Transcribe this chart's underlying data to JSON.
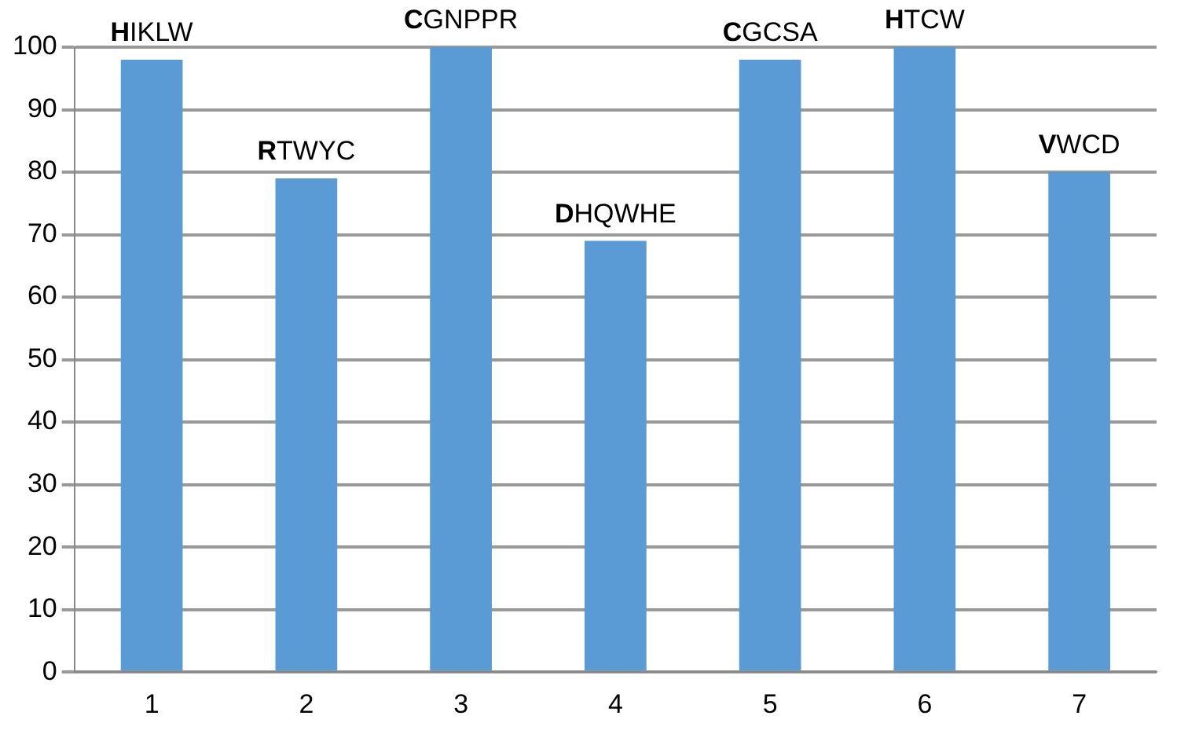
{
  "chart_data": {
    "type": "bar",
    "categories": [
      "1",
      "2",
      "3",
      "4",
      "5",
      "6",
      "7"
    ],
    "values": [
      98,
      79,
      100,
      69,
      98,
      100,
      80
    ],
    "color": "#5b9bd5",
    "ylim": [
      0,
      100
    ],
    "yticks": [
      0,
      10,
      20,
      30,
      40,
      50,
      60,
      70,
      80,
      90,
      100
    ],
    "grid": "y",
    "legend": false,
    "annotations": [
      {
        "text": "HIKLW",
        "x": "1",
        "y": 98
      },
      {
        "text": "RTWYC",
        "x": "2",
        "y": 79
      },
      {
        "text": "CGNPPR",
        "x": "3",
        "y": 100
      },
      {
        "text": "DHQWHE",
        "x": "4",
        "y": 69
      },
      {
        "text": "CGCSA",
        "x": "5",
        "y": 98
      },
      {
        "text": "HTCW",
        "x": "6",
        "y": 100
      },
      {
        "text": "VWCD",
        "x": "7",
        "y": 80
      }
    ]
  }
}
